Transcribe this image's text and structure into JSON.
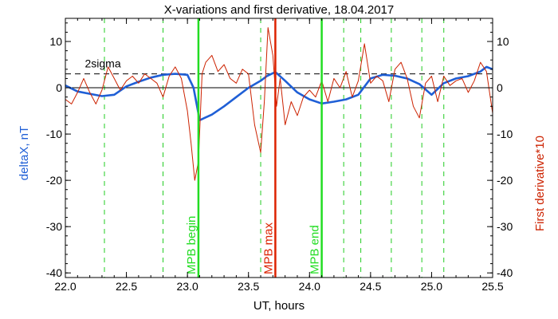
{
  "chart_data": {
    "type": "line",
    "title": "X-variations and first derivative, 18.04.2017",
    "xlabel": "UT, hours",
    "ylabel_left": "deltaX, nT",
    "ylabel_right": "First derivative*10",
    "xlim": [
      22.0,
      25.5
    ],
    "ylim": [
      -41,
      15
    ],
    "x_ticks": [
      22.0,
      22.5,
      23.0,
      23.5,
      24.0,
      24.5,
      25.0,
      25.5
    ],
    "x_tick_labels": [
      "22.0",
      "22.5",
      "23.0",
      "23.5",
      "24.0",
      "24.5",
      "25.0",
      "25.5"
    ],
    "y_ticks": [
      10,
      0,
      -10,
      -20,
      -30,
      -40
    ],
    "y_tick_labels": [
      "10",
      "0",
      "-10",
      "-20",
      "-30",
      "-40"
    ],
    "sigma_level": 3,
    "sigma_label": "2sigma",
    "zero_line": 0,
    "dashed_green_x": [
      22.32,
      22.8,
      23.6,
      24.28,
      24.42,
      24.67,
      24.92,
      25.1
    ],
    "markers": [
      {
        "label": "MPB begin",
        "x": 23.09,
        "color": "#22dd22"
      },
      {
        "label": "MPB max",
        "x": 23.72,
        "color": "#dd2200"
      },
      {
        "label": "MPB end",
        "x": 24.1,
        "color": "#22dd22"
      }
    ],
    "series": [
      {
        "name": "deltaX",
        "color": "#1f5fd6",
        "x": [
          22.0,
          22.1,
          22.2,
          22.3,
          22.4,
          22.5,
          22.6,
          22.7,
          22.8,
          22.9,
          23.0,
          23.05,
          23.1,
          23.2,
          23.3,
          23.4,
          23.5,
          23.6,
          23.65,
          23.72,
          23.8,
          23.9,
          24.0,
          24.1,
          24.2,
          24.3,
          24.4,
          24.5,
          24.6,
          24.7,
          24.8,
          24.9,
          25.0,
          25.1,
          25.2,
          25.3,
          25.4,
          25.45,
          25.5
        ],
        "y": [
          0.5,
          -0.8,
          -1.3,
          -1.8,
          -1.5,
          0.3,
          1.3,
          2.2,
          2.8,
          3.0,
          2.8,
          0.0,
          -7.0,
          -5.8,
          -4.0,
          -2.0,
          0.0,
          1.5,
          2.5,
          3.4,
          1.5,
          -1.0,
          -2.5,
          -3.4,
          -3.0,
          -2.5,
          -1.5,
          2.0,
          2.8,
          2.6,
          2.0,
          0.8,
          -1.5,
          1.0,
          2.0,
          2.5,
          3.5,
          4.5,
          4.0
        ]
      },
      {
        "name": "First derivative*10",
        "color": "#cc2200",
        "x": [
          22.0,
          22.05,
          22.1,
          22.15,
          22.2,
          22.25,
          22.3,
          22.35,
          22.4,
          22.45,
          22.5,
          22.55,
          22.6,
          22.65,
          22.7,
          22.75,
          22.8,
          22.85,
          22.9,
          22.95,
          23.0,
          23.03,
          23.06,
          23.09,
          23.12,
          23.15,
          23.2,
          23.25,
          23.3,
          23.35,
          23.4,
          23.45,
          23.5,
          23.55,
          23.6,
          23.63,
          23.66,
          23.7,
          23.73,
          23.76,
          23.8,
          23.85,
          23.9,
          23.95,
          24.0,
          24.05,
          24.1,
          24.15,
          24.2,
          24.25,
          24.3,
          24.35,
          24.4,
          24.45,
          24.5,
          24.55,
          24.6,
          24.65,
          24.7,
          24.75,
          24.8,
          24.85,
          24.9,
          24.95,
          25.0,
          25.05,
          25.1,
          25.15,
          25.2,
          25.25,
          25.3,
          25.35,
          25.4,
          25.45,
          25.5
        ],
        "y": [
          -2.5,
          -3.5,
          -1.0,
          2.0,
          -1.0,
          -3.5,
          -0.5,
          4.5,
          2.0,
          -0.5,
          1.5,
          2.5,
          1.0,
          3.0,
          2.0,
          1.0,
          -2.0,
          2.5,
          4.5,
          2.0,
          -5.0,
          -12.0,
          -20.0,
          -16.0,
          3.0,
          5.5,
          7.0,
          3.5,
          5.0,
          2.0,
          1.0,
          4.0,
          3.0,
          -8.0,
          -14.0,
          -3.0,
          13.0,
          7.0,
          -4.0,
          2.0,
          -8.0,
          -3.0,
          -6.0,
          -2.0,
          -0.5,
          -2.0,
          1.5,
          -3.0,
          2.0,
          0.0,
          3.5,
          -2.0,
          1.5,
          9.5,
          1.0,
          2.5,
          1.5,
          -3.0,
          4.0,
          5.5,
          2.0,
          -4.0,
          -6.5,
          1.0,
          2.5,
          -3.0,
          2.5,
          0.5,
          1.5,
          2.0,
          -1.0,
          1.5,
          5.5,
          3.5,
          -5.5
        ]
      }
    ]
  }
}
